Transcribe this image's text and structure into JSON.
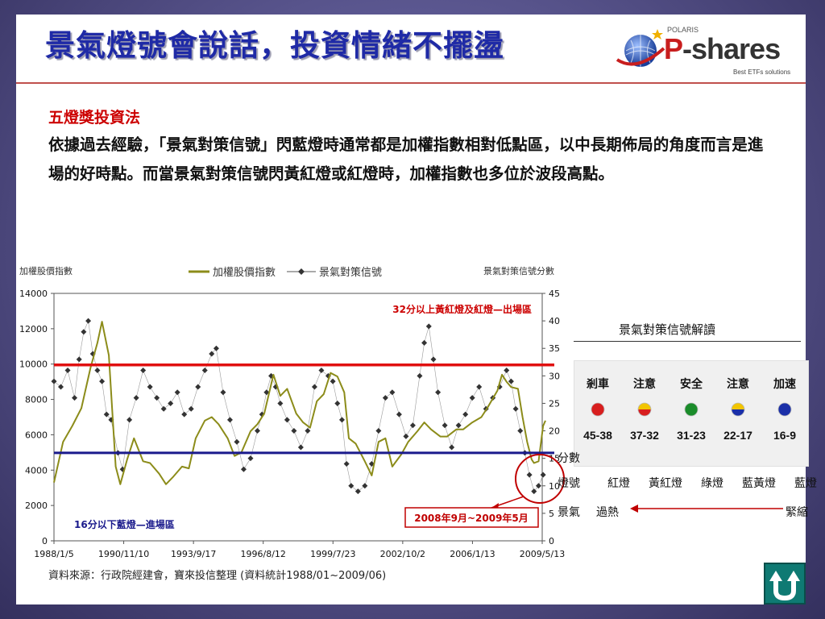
{
  "slide": {
    "title": "景氣燈號會說話，投資情緒不擺盪",
    "logo": {
      "polaris": "POLARIS",
      "brand_p": "P",
      "brand_rest": "-shares",
      "tagline": "Best ETFs solutions"
    },
    "heading": "五燈獎投資法",
    "body": "依據過去經驗，「景氣對策信號」閃藍燈時通常都是加權指數相對低點區，以中長期佈局的角度而言是進場的好時點。而當景氣對策信號閃黃紅燈或紅燈時，加權指數也多位於波段高點。",
    "source": "資料來源：行政院經建會，寶來投信整理 (資料統計1988/01~2009/06)"
  },
  "chart_data": {
    "type": "line",
    "left_axis_label": "加權股價指數",
    "right_axis_label": "景氣對策信號分數",
    "legend": [
      "加權股價指數",
      "景氣對策信號"
    ],
    "x_tick_labels": [
      "1988/1/5",
      "1990/11/10",
      "1993/9/17",
      "1996/8/12",
      "1999/7/23",
      "2002/10/2",
      "2006/1/13",
      "2009/5/13"
    ],
    "ylim_left": [
      0,
      14000
    ],
    "y_ticks_left": [
      0,
      2000,
      4000,
      6000,
      8000,
      10000,
      12000,
      14000
    ],
    "ylim_right": [
      0,
      45
    ],
    "y_ticks_right": [
      0,
      5,
      10,
      15,
      20,
      25,
      30,
      35,
      40,
      45
    ],
    "colors": {
      "index": "#8c8c1a",
      "signal": "#333333",
      "red_line": "#e01010",
      "blue_line": "#1a1a8c",
      "annot_red": "#cc0000",
      "annot_blue": "#1a1a8c"
    },
    "series": [
      {
        "name": "加權股價指數",
        "axis": "left",
        "x": [
          1988.0,
          1988.4,
          1988.8,
          1989.2,
          1989.6,
          1989.9,
          1990.1,
          1990.4,
          1990.7,
          1990.9,
          1991.2,
          1991.5,
          1991.9,
          1992.2,
          1992.6,
          1992.9,
          1993.2,
          1993.6,
          1993.9,
          1994.2,
          1994.6,
          1994.9,
          1995.2,
          1995.6,
          1995.9,
          1996.2,
          1996.6,
          1996.9,
          1997.2,
          1997.6,
          1997.9,
          1998.2,
          1998.6,
          1998.9,
          1999.2,
          1999.5,
          1999.8,
          2000.1,
          2000.4,
          2000.7,
          2000.9,
          2001.2,
          2001.6,
          2001.9,
          2002.2,
          2002.5,
          2002.8,
          2003.2,
          2003.5,
          2003.9,
          2004.2,
          2004.5,
          2004.9,
          2005.2,
          2005.6,
          2005.9,
          2006.3,
          2006.7,
          2007.0,
          2007.4,
          2007.6,
          2007.8,
          2008.0,
          2008.3,
          2008.5,
          2008.7,
          2008.9,
          2009.0,
          2009.2,
          2009.4,
          2009.5
        ],
        "values": [
          3300,
          5600,
          6500,
          7500,
          9800,
          11200,
          12400,
          10500,
          4200,
          3200,
          4600,
          5800,
          4500,
          4400,
          3800,
          3200,
          3600,
          4200,
          4100,
          5800,
          6800,
          7000,
          6600,
          5800,
          4800,
          5000,
          6200,
          6600,
          7200,
          9400,
          8200,
          8600,
          7200,
          6700,
          6400,
          7900,
          8300,
          9500,
          9300,
          8400,
          5800,
          5500,
          4500,
          3700,
          5600,
          5800,
          4200,
          4900,
          5600,
          6200,
          6700,
          6300,
          5900,
          5900,
          6300,
          6300,
          6700,
          7000,
          7600,
          8500,
          9400,
          9000,
          8700,
          8600,
          7000,
          5600,
          4600,
          4400,
          4500,
          6500,
          6800
        ]
      },
      {
        "name": "景氣對策信號",
        "axis": "right",
        "x": [
          1988.0,
          1988.3,
          1988.6,
          1988.9,
          1989.1,
          1989.3,
          1989.5,
          1989.7,
          1989.9,
          1990.1,
          1990.3,
          1990.5,
          1990.8,
          1991.0,
          1991.3,
          1991.6,
          1991.9,
          1992.2,
          1992.5,
          1992.8,
          1993.1,
          1993.4,
          1993.7,
          1994.0,
          1994.3,
          1994.6,
          1994.9,
          1995.1,
          1995.4,
          1995.7,
          1996.0,
          1996.3,
          1996.6,
          1996.9,
          1997.1,
          1997.3,
          1997.5,
          1997.7,
          1997.9,
          1998.2,
          1998.5,
          1998.8,
          1999.1,
          1999.4,
          1999.7,
          2000.0,
          2000.2,
          2000.4,
          2000.6,
          2000.8,
          2001.0,
          2001.3,
          2001.6,
          2001.9,
          2002.2,
          2002.5,
          2002.8,
          2003.1,
          2003.4,
          2003.7,
          2004.0,
          2004.2,
          2004.4,
          2004.6,
          2004.8,
          2005.1,
          2005.4,
          2005.7,
          2006.0,
          2006.3,
          2006.6,
          2006.9,
          2007.2,
          2007.5,
          2007.8,
          2008.0,
          2008.2,
          2008.4,
          2008.6,
          2008.8,
          2009.0,
          2009.2,
          2009.4
        ],
        "values": [
          29,
          28,
          31,
          26,
          33,
          38,
          40,
          34,
          31,
          29,
          23,
          22,
          16,
          13,
          22,
          26,
          31,
          28,
          26,
          24,
          25,
          27,
          23,
          24,
          28,
          31,
          34,
          35,
          27,
          22,
          18,
          13,
          15,
          20,
          23,
          27,
          30,
          28,
          25,
          22,
          20,
          17,
          20,
          28,
          31,
          30,
          29,
          25,
          22,
          14,
          10,
          9,
          10,
          14,
          20,
          26,
          27,
          23,
          19,
          21,
          30,
          36,
          39,
          33,
          27,
          21,
          17,
          21,
          23,
          26,
          28,
          24,
          26,
          28,
          31,
          29,
          24,
          20,
          16,
          12,
          9,
          10,
          12
        ]
      }
    ],
    "reference_lines": [
      {
        "label": "32分以上黃紅燈及紅燈—出場區",
        "axis": "right",
        "value": 32
      },
      {
        "label": "16分以下藍燈—進場區",
        "axis": "right",
        "value": 16
      }
    ],
    "annotation": "2008年9月~2009年5月"
  },
  "signal_legend": {
    "title": "景氣對策信號解讀",
    "row_labels": {
      "score": "分數",
      "light": "燈號",
      "climate": "景氣"
    },
    "columns": [
      {
        "header": "剎車",
        "range": "45-38",
        "light": "紅燈",
        "dot_top": "#d81e1e",
        "dot_bottom": "#d81e1e"
      },
      {
        "header": "注意",
        "range": "37-32",
        "light": "黃紅燈",
        "dot_top": "#f2c500",
        "dot_bottom": "#d81e1e"
      },
      {
        "header": "安全",
        "range": "31-23",
        "light": "綠燈",
        "dot_top": "#1a8c2a",
        "dot_bottom": "#1a8c2a"
      },
      {
        "header": "注意",
        "range": "22-17",
        "light": "藍黃燈",
        "dot_top": "#f2c500",
        "dot_bottom": "#1a2fa8"
      },
      {
        "header": "加速",
        "range": "16-9",
        "light": "藍燈",
        "dot_top": "#1a2fa8",
        "dot_bottom": "#1a2fa8"
      }
    ],
    "climate_left": "過熱",
    "climate_right": "緊縮"
  }
}
